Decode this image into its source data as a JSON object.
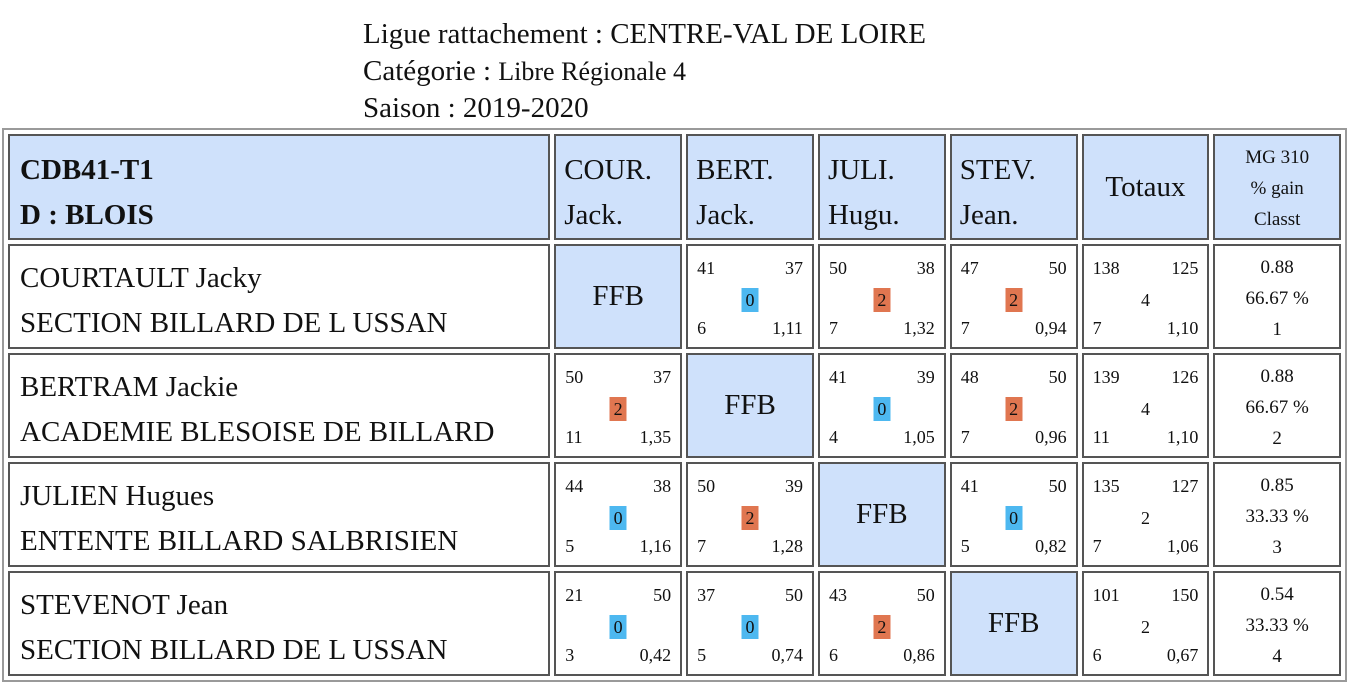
{
  "header": {
    "ligue_label": "Ligue rattachement :",
    "ligue_value": "CENTRE-VAL DE LOIRE",
    "categorie_label": "Catégorie :",
    "categorie_value": "Libre Régionale 4",
    "saison_label": "Saison :",
    "saison_value": "2019-2020"
  },
  "table": {
    "team_line1": "CDB41-T1",
    "team_line2": "D : BLOIS",
    "columns": [
      {
        "l1": "COUR.",
        "l2": "Jack."
      },
      {
        "l1": "BERT.",
        "l2": "Jack."
      },
      {
        "l1": "JULI.",
        "l2": "Hugu."
      },
      {
        "l1": "STEV.",
        "l2": "Jean."
      }
    ],
    "totaux_label": "Totaux",
    "mg_line1": "MG 310",
    "mg_line2": "% gain",
    "mg_line3": "Classt",
    "ffb_label": "FFB",
    "rows": [
      {
        "name": "COURTAULT Jacky",
        "club": "SECTION BILLARD DE L USSAN",
        "cells": [
          null,
          {
            "tl": "41",
            "tr": "37",
            "mid": "0",
            "bl": "6",
            "br": "1,11",
            "win": false
          },
          {
            "tl": "50",
            "tr": "38",
            "mid": "2",
            "bl": "7",
            "br": "1,32",
            "win": true
          },
          {
            "tl": "47",
            "tr": "50",
            "mid": "2",
            "bl": "7",
            "br": "0,94",
            "win": true
          }
        ],
        "totals": {
          "tl": "138",
          "tr": "125",
          "mid": "4",
          "bl": "7",
          "br": "1,10"
        },
        "stats": {
          "mg": "0.88",
          "pct": "66.67 %",
          "rank": "1"
        }
      },
      {
        "name": "BERTRAM Jackie",
        "club": "ACADEMIE BLESOISE DE BILLARD",
        "cells": [
          {
            "tl": "50",
            "tr": "37",
            "mid": "2",
            "bl": "11",
            "br": "1,35",
            "win": true
          },
          null,
          {
            "tl": "41",
            "tr": "39",
            "mid": "0",
            "bl": "4",
            "br": "1,05",
            "win": false
          },
          {
            "tl": "48",
            "tr": "50",
            "mid": "2",
            "bl": "7",
            "br": "0,96",
            "win": true
          }
        ],
        "totals": {
          "tl": "139",
          "tr": "126",
          "mid": "4",
          "bl": "11",
          "br": "1,10"
        },
        "stats": {
          "mg": "0.88",
          "pct": "66.67 %",
          "rank": "2"
        }
      },
      {
        "name": "JULIEN Hugues",
        "club": "ENTENTE BILLARD SALBRISIEN",
        "cells": [
          {
            "tl": "44",
            "tr": "38",
            "mid": "0",
            "bl": "5",
            "br": "1,16",
            "win": false
          },
          {
            "tl": "50",
            "tr": "39",
            "mid": "2",
            "bl": "7",
            "br": "1,28",
            "win": true
          },
          null,
          {
            "tl": "41",
            "tr": "50",
            "mid": "0",
            "bl": "5",
            "br": "0,82",
            "win": false
          }
        ],
        "totals": {
          "tl": "135",
          "tr": "127",
          "mid": "2",
          "bl": "7",
          "br": "1,06"
        },
        "stats": {
          "mg": "0.85",
          "pct": "33.33 %",
          "rank": "3"
        }
      },
      {
        "name": "STEVENOT Jean",
        "club": "SECTION BILLARD DE L USSAN",
        "cells": [
          {
            "tl": "21",
            "tr": "50",
            "mid": "0",
            "bl": "3",
            "br": "0,42",
            "win": false
          },
          {
            "tl": "37",
            "tr": "50",
            "mid": "0",
            "bl": "5",
            "br": "0,74",
            "win": false
          },
          {
            "tl": "43",
            "tr": "50",
            "mid": "2",
            "bl": "6",
            "br": "0,86",
            "win": true
          },
          null
        ],
        "totals": {
          "tl": "101",
          "tr": "150",
          "mid": "2",
          "bl": "6",
          "br": "0,67"
        },
        "stats": {
          "mg": "0.54",
          "pct": "33.33 %",
          "rank": "4"
        }
      }
    ]
  },
  "colors": {
    "header_bg": "#cfe1fb",
    "win_badge": "#e07650",
    "lose_badge": "#4db8f0"
  }
}
